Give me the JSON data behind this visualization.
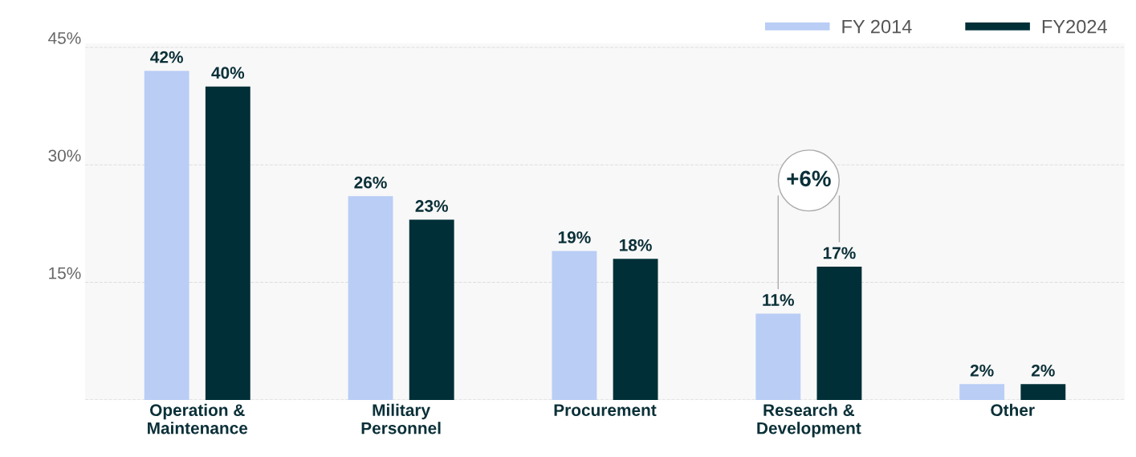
{
  "chart_data": {
    "type": "bar",
    "categories": [
      "Operation &\nMaintenance",
      "Military\nPersonnel",
      "Procurement",
      "Research &\nDevelopment",
      "Other"
    ],
    "series": [
      {
        "name": "FY 2014",
        "color": "#b9cdf5",
        "values": [
          42,
          26,
          19,
          11,
          2
        ],
        "value_labels": [
          "42%",
          "26%",
          "19%",
          "11%",
          "2%"
        ]
      },
      {
        "name": "FY2024",
        "color": "#002f37",
        "values": [
          40,
          23,
          18,
          17,
          2
        ],
        "value_labels": [
          "40%",
          "23%",
          "18%",
          "17%",
          "2%"
        ]
      }
    ],
    "ylim": [
      0,
      45.5
    ],
    "yticks": [
      {
        "value": 0,
        "label": null
      },
      {
        "value": 15,
        "label": "15%"
      },
      {
        "value": 30,
        "label": "30%"
      },
      {
        "value": 45,
        "label": "45%"
      }
    ],
    "grid": "y",
    "legend": "top right",
    "annotations": [
      "+6%"
    ]
  }
}
